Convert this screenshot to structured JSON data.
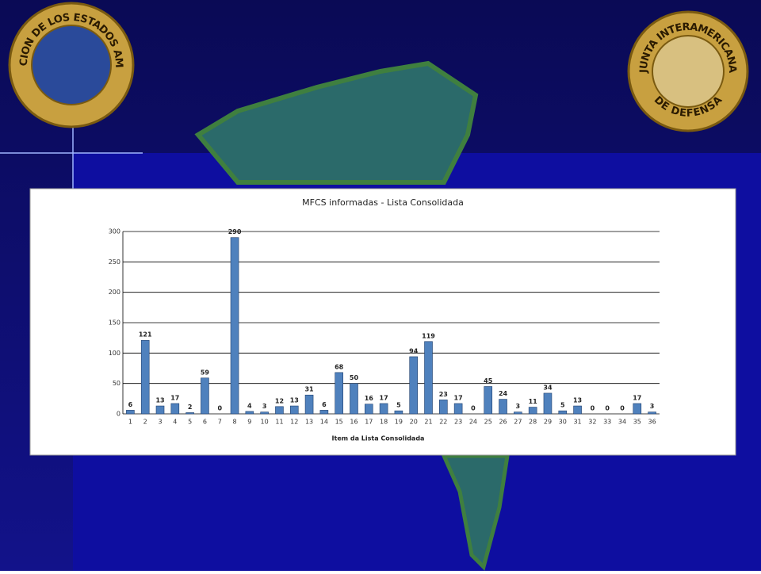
{
  "logos": {
    "left": "ORGANIZACION DE LOS ESTADOS AMERICANOS",
    "right_top": "JUNTA INTERAMERICANA",
    "right_bottom": "DE DEFENSA"
  },
  "chart_data": {
    "type": "bar",
    "title": "MFCS informadas - Lista Consolidada",
    "x_label": "Item da Lista Consolidada",
    "categories": [
      "1",
      "2",
      "3",
      "4",
      "5",
      "6",
      "7",
      "8",
      "9",
      "10",
      "11",
      "12",
      "13",
      "14",
      "15",
      "16",
      "17",
      "18",
      "19",
      "20",
      "21",
      "22",
      "23",
      "24",
      "25",
      "26",
      "27",
      "28",
      "29",
      "30",
      "31",
      "32",
      "33",
      "34",
      "35",
      "36"
    ],
    "values": [
      6,
      121,
      13,
      17,
      2,
      59,
      0,
      290,
      4,
      3,
      12,
      13,
      31,
      6,
      68,
      50,
      16,
      17,
      5,
      94,
      119,
      23,
      17,
      0,
      45,
      24,
      3,
      11,
      34,
      5,
      13,
      0,
      0,
      0,
      17,
      3
    ],
    "color": "#4f81bd",
    "ylim": [
      0,
      300
    ],
    "yticks": [
      0,
      50,
      100,
      150,
      200,
      250,
      300
    ],
    "grid": true,
    "data_labels": true
  }
}
